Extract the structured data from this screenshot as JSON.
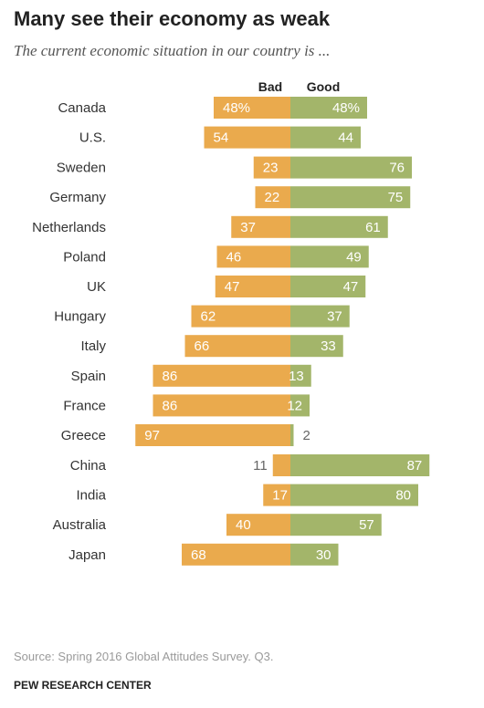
{
  "title": "Many see their economy as weak",
  "subtitle": "The current economic situation in our country is ...",
  "source": "Source: Spring 2016 Global Attitudes Survey. Q3.",
  "credit": "PEW RESEARCH CENTER",
  "colors": {
    "bad": "#eaaa4d",
    "good": "#a3b56a"
  },
  "chart_data": {
    "type": "bar",
    "series": [
      {
        "name": "Bad",
        "values": [
          48,
          54,
          23,
          22,
          37,
          46,
          47,
          62,
          66,
          86,
          86,
          97,
          11,
          17,
          40,
          68
        ]
      },
      {
        "name": "Good",
        "values": [
          48,
          44,
          76,
          75,
          61,
          49,
          47,
          37,
          33,
          13,
          12,
          2,
          87,
          80,
          57,
          30
        ]
      }
    ],
    "categories": [
      "Canada",
      "U.S.",
      "Sweden",
      "Germany",
      "Netherlands",
      "Poland",
      "UK",
      "Hungary",
      "Italy",
      "Spain",
      "France",
      "Greece",
      "China",
      "India",
      "Australia",
      "Japan"
    ],
    "value_labels": {
      "bad": [
        "48%",
        "54",
        "23",
        "22",
        "37",
        "46",
        "47",
        "62",
        "66",
        "86",
        "86",
        "97",
        "11",
        "17",
        "40",
        "68"
      ],
      "good": [
        "48%",
        "44",
        "76",
        "75",
        "61",
        "49",
        "47",
        "37",
        "33",
        "13",
        "12",
        "2",
        "87",
        "80",
        "57",
        "30"
      ]
    },
    "groups": [
      [
        0,
        1
      ],
      [
        2,
        3,
        4,
        5,
        6,
        7,
        8,
        9,
        10,
        11
      ],
      [
        12,
        13,
        14,
        15
      ]
    ]
  }
}
